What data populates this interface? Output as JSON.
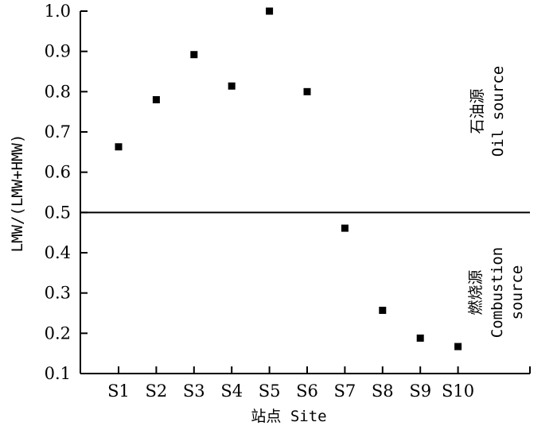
{
  "chart_data": {
    "type": "scatter",
    "title": "",
    "xlabel": "站点 Site",
    "ylabel": "LMW/(LMW+HMW)",
    "categories": [
      "S1",
      "S2",
      "S3",
      "S4",
      "S5",
      "S6",
      "S7",
      "S8",
      "S9",
      "S10"
    ],
    "values": [
      0.663,
      0.78,
      0.892,
      0.814,
      1.0,
      0.8,
      0.461,
      0.257,
      0.188,
      0.167
    ],
    "ylim": [
      0.1,
      1.0
    ],
    "yticks": [
      "0.1",
      "0.2",
      "0.3",
      "0.4",
      "0.5",
      "0.6",
      "0.7",
      "0.8",
      "0.9",
      "1.0"
    ],
    "threshold": 0.5,
    "grid": false,
    "marker": "square",
    "marker_color": "#000000",
    "annotations": {
      "oil_cn": "石油源",
      "oil_en": "Oil source",
      "combustion_cn": "燃烧源",
      "combustion_en": "Combustion",
      "combustion_en2": "source"
    }
  }
}
